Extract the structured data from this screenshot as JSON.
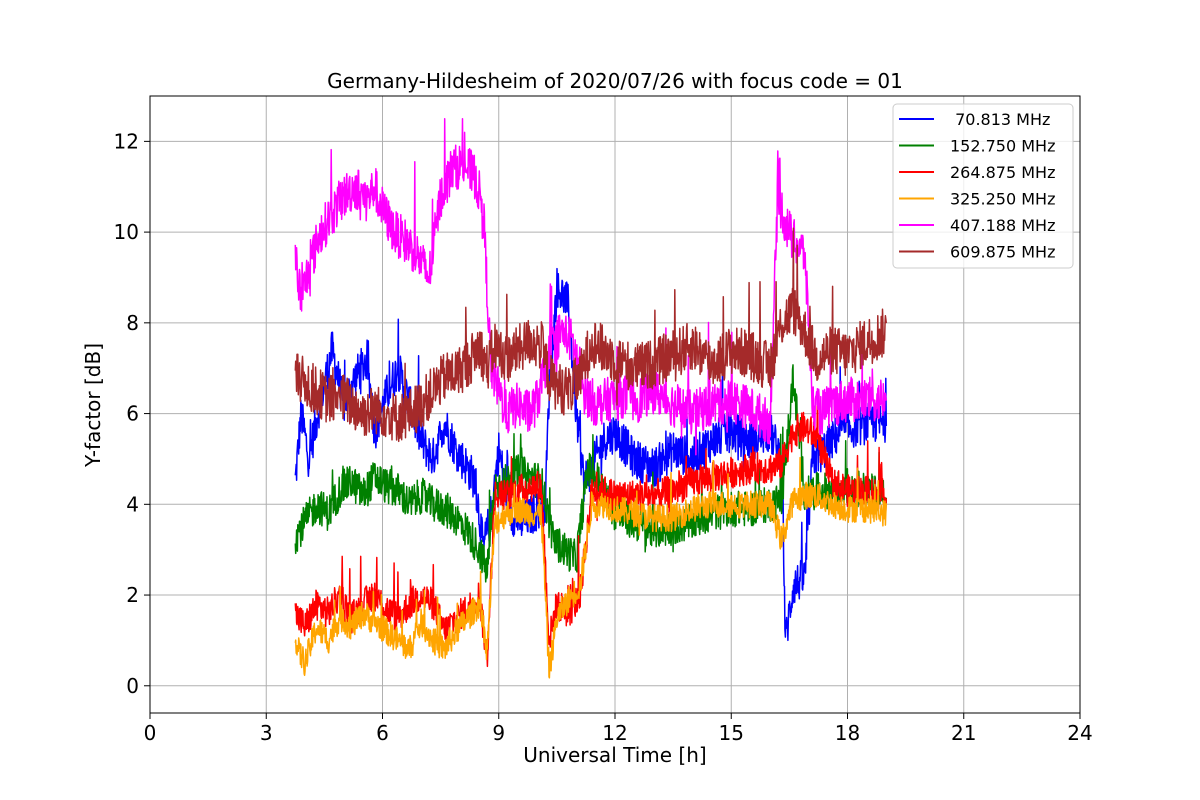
{
  "chart_data": {
    "type": "line",
    "title": "Germany-Hildesheim of 2020/07/26 with focus code = 01",
    "xlabel": "Universal Time [h]",
    "ylabel": "Y-factor [dB]",
    "xlim": [
      0,
      24
    ],
    "ylim": [
      -0.6,
      13
    ],
    "xticks": [
      0,
      3,
      6,
      9,
      12,
      15,
      18,
      21,
      24
    ],
    "yticks": [
      0,
      2,
      4,
      6,
      8,
      10,
      12
    ],
    "grid": true,
    "legend_position": "top-right",
    "series": [
      {
        "name": " 70.813 MHz",
        "color": "#0000ff",
        "x": [
          3.75,
          3.9,
          4.1,
          4.4,
          4.7,
          5.0,
          5.3,
          5.6,
          5.8,
          6.1,
          6.4,
          6.7,
          7.0,
          7.3,
          7.6,
          7.9,
          8.2,
          8.4,
          8.6,
          8.8,
          9.0,
          9.3,
          9.6,
          9.9,
          10.2,
          10.3,
          10.5,
          10.8,
          11.0,
          11.2,
          11.4,
          11.7,
          12.0,
          12.5,
          13.0,
          13.5,
          14.0,
          14.5,
          15.0,
          15.5,
          16.0,
          16.3,
          16.4,
          16.6,
          16.9,
          17.1,
          17.4,
          17.8,
          18.2,
          18.6,
          19.0
        ],
        "y": [
          4.5,
          6.0,
          5.0,
          6.3,
          7.4,
          6.2,
          6.8,
          7.2,
          5.6,
          6.4,
          7.0,
          6.2,
          5.4,
          5.0,
          5.8,
          5.2,
          4.8,
          4.5,
          3.0,
          3.8,
          5.2,
          3.8,
          3.6,
          3.8,
          4.0,
          6.5,
          8.8,
          8.4,
          6.0,
          4.5,
          4.8,
          5.4,
          5.6,
          5.0,
          4.8,
          5.2,
          5.0,
          5.4,
          5.6,
          5.4,
          5.6,
          5.0,
          1.0,
          2.2,
          2.4,
          5.0,
          5.2,
          5.6,
          5.7,
          5.8,
          5.8
        ]
      },
      {
        "name": "152.750 MHz",
        "color": "#008000",
        "x": [
          3.75,
          4.0,
          4.3,
          4.6,
          4.9,
          5.2,
          5.5,
          5.8,
          6.1,
          6.4,
          6.7,
          7.0,
          7.3,
          7.6,
          7.9,
          8.2,
          8.5,
          8.7,
          8.9,
          9.2,
          9.5,
          9.8,
          10.1,
          10.4,
          10.7,
          11.0,
          11.3,
          11.6,
          12.0,
          12.5,
          13.0,
          13.5,
          14.0,
          14.5,
          15.0,
          15.5,
          16.0,
          16.3,
          16.6,
          16.9,
          17.2,
          17.6,
          18.0,
          18.5,
          19.0
        ],
        "y": [
          3.3,
          3.6,
          4.0,
          3.8,
          4.3,
          4.5,
          4.2,
          4.6,
          4.4,
          4.3,
          4.0,
          4.2,
          4.0,
          3.9,
          3.7,
          3.4,
          3.0,
          2.5,
          4.4,
          4.5,
          4.7,
          4.6,
          4.5,
          3.2,
          3.0,
          2.8,
          4.8,
          4.5,
          3.8,
          3.6,
          3.4,
          3.5,
          3.6,
          3.8,
          3.9,
          3.9,
          4.0,
          4.1,
          6.8,
          4.2,
          4.3,
          4.3,
          4.4,
          4.3,
          4.2
        ]
      },
      {
        "name": "264.875 MHz",
        "color": "#ff0000",
        "x": [
          3.75,
          4.0,
          4.3,
          4.6,
          4.9,
          5.2,
          5.5,
          5.8,
          6.1,
          6.4,
          6.7,
          7.0,
          7.3,
          7.6,
          7.9,
          8.2,
          8.5,
          8.7,
          8.9,
          9.2,
          9.5,
          9.8,
          10.1,
          10.3,
          10.5,
          10.8,
          11.1,
          11.4,
          11.7,
          12.0,
          12.5,
          13.0,
          13.5,
          14.0,
          14.5,
          15.0,
          15.5,
          16.0,
          16.3,
          16.6,
          16.9,
          17.2,
          17.6,
          18.0,
          18.5,
          19.0
        ],
        "y": [
          1.6,
          1.3,
          1.8,
          1.6,
          2.0,
          1.5,
          1.8,
          2.0,
          1.7,
          1.5,
          1.8,
          2.0,
          1.8,
          1.2,
          1.5,
          1.7,
          2.0,
          0.6,
          4.2,
          4.2,
          4.3,
          4.4,
          4.4,
          1.0,
          1.8,
          1.6,
          2.0,
          4.3,
          4.3,
          4.2,
          4.2,
          4.2,
          4.3,
          4.5,
          4.6,
          4.7,
          4.8,
          4.8,
          4.9,
          5.6,
          5.7,
          5.5,
          4.5,
          4.3,
          4.3,
          4.2
        ]
      },
      {
        "name": "325.250 MHz",
        "color": "#ffa500",
        "x": [
          3.75,
          4.0,
          4.3,
          4.6,
          4.9,
          5.2,
          5.5,
          5.8,
          6.1,
          6.4,
          6.7,
          7.0,
          7.3,
          7.6,
          7.9,
          8.2,
          8.5,
          8.7,
          8.9,
          9.2,
          9.5,
          9.8,
          10.1,
          10.3,
          10.5,
          10.8,
          11.1,
          11.4,
          11.7,
          12.0,
          12.5,
          13.0,
          13.5,
          14.0,
          14.5,
          15.0,
          15.5,
          16.0,
          16.3,
          16.6,
          16.9,
          17.2,
          17.6,
          18.0,
          18.5,
          19.0
        ],
        "y": [
          0.9,
          0.5,
          1.3,
          1.0,
          1.5,
          1.3,
          1.6,
          1.4,
          1.2,
          1.0,
          0.8,
          1.4,
          1.0,
          0.8,
          1.2,
          1.5,
          1.8,
          0.8,
          3.6,
          3.8,
          3.9,
          3.8,
          3.8,
          0.3,
          1.5,
          1.9,
          2.2,
          4.0,
          4.0,
          3.9,
          3.8,
          3.7,
          3.7,
          3.9,
          4.0,
          4.0,
          4.0,
          4.0,
          3.2,
          4.1,
          4.2,
          4.2,
          4.0,
          3.9,
          3.9,
          3.8
        ]
      },
      {
        "name": "407.188 MHz",
        "color": "#ff00ff",
        "x": [
          3.75,
          3.9,
          4.1,
          4.4,
          4.7,
          5.0,
          5.3,
          5.6,
          5.8,
          6.0,
          6.3,
          6.6,
          6.9,
          7.2,
          7.5,
          7.8,
          8.1,
          8.4,
          8.6,
          8.8,
          9.0,
          9.2,
          9.5,
          9.8,
          10.0,
          10.2,
          10.4,
          10.6,
          10.9,
          11.2,
          11.5,
          11.8,
          12.2,
          12.6,
          13.0,
          13.5,
          14.0,
          14.5,
          15.0,
          15.5,
          16.0,
          16.2,
          16.4,
          16.6,
          16.9,
          17.1,
          17.3,
          17.6,
          18.0,
          18.5,
          19.0
        ],
        "y": [
          9.5,
          8.5,
          9.2,
          10.0,
          10.4,
          10.8,
          11.0,
          10.7,
          11.0,
          10.5,
          10.0,
          9.8,
          9.5,
          9.0,
          10.8,
          11.4,
          11.5,
          11.2,
          10.5,
          7.0,
          6.5,
          6.0,
          6.2,
          6.0,
          6.3,
          7.0,
          7.5,
          7.8,
          7.6,
          6.5,
          6.2,
          6.3,
          6.4,
          6.3,
          6.5,
          6.2,
          6.0,
          6.2,
          6.3,
          6.1,
          5.8,
          10.8,
          10.2,
          9.8,
          9.5,
          6.2,
          6.0,
          6.2,
          6.3,
          6.3,
          6.3
        ]
      },
      {
        "name": "609.875 MHz",
        "color": "#a52a2a",
        "x": [
          3.75,
          4.0,
          4.3,
          4.6,
          4.9,
          5.2,
          5.5,
          5.8,
          6.1,
          6.4,
          6.7,
          7.0,
          7.3,
          7.6,
          7.9,
          8.2,
          8.5,
          8.7,
          8.9,
          9.2,
          9.5,
          9.8,
          10.1,
          10.3,
          10.5,
          10.8,
          11.1,
          11.4,
          11.7,
          12.0,
          12.5,
          13.0,
          13.5,
          14.0,
          14.5,
          15.0,
          15.5,
          16.0,
          16.3,
          16.6,
          16.9,
          17.2,
          17.6,
          18.0,
          18.5,
          19.0
        ],
        "y": [
          6.8,
          6.7,
          6.5,
          6.3,
          6.4,
          6.2,
          6.0,
          6.1,
          6.0,
          5.9,
          6.0,
          6.2,
          6.5,
          6.8,
          6.9,
          7.1,
          7.5,
          7.0,
          7.5,
          7.2,
          7.4,
          7.6,
          7.5,
          6.8,
          6.6,
          6.5,
          6.8,
          7.6,
          7.4,
          7.2,
          7.0,
          7.1,
          7.3,
          7.5,
          7.1,
          7.4,
          7.3,
          7.0,
          8.0,
          8.3,
          7.8,
          7.2,
          7.4,
          7.3,
          7.6,
          7.8
        ]
      }
    ]
  }
}
